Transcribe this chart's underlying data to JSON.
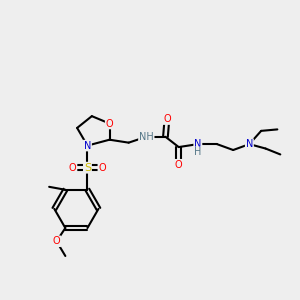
{
  "bg_color": "#eeeeee",
  "atom_colors": {
    "C": "#000000",
    "N": "#0000cc",
    "O": "#ff0000",
    "S": "#ccbb00",
    "H": "#557788"
  },
  "bond_color": "#000000",
  "bond_width": 1.5,
  "figsize": [
    3.0,
    3.0
  ],
  "dpi": 100
}
